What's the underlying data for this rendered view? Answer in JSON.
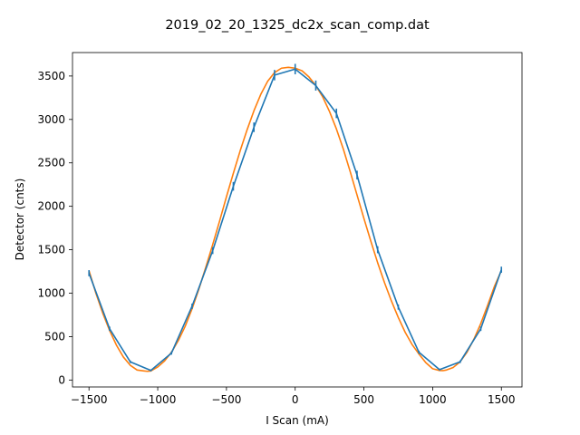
{
  "chart_data": {
    "type": "line",
    "title": "2019_02_20_1325_dc2x_scan_comp.dat",
    "xlabel": "I Scan (mA)",
    "ylabel": "Detector (cnts)",
    "xlim": [
      -1620,
      1650
    ],
    "ylim": [
      -80,
      3770
    ],
    "xticks": [
      -1500,
      -1000,
      -500,
      0,
      500,
      1000,
      1500
    ],
    "xtick_labels": [
      "−1500",
      "−1000",
      "−500",
      "0",
      "500",
      "1000",
      "1500"
    ],
    "yticks": [
      0,
      500,
      1000,
      1500,
      2000,
      2500,
      3000,
      3500
    ],
    "ytick_labels": [
      "0",
      "500",
      "1000",
      "1500",
      "2000",
      "2500",
      "3000",
      "3500"
    ],
    "grid": false,
    "series": [
      {
        "kind": "fit",
        "color": "#ff7f0e",
        "x": [
          -1500,
          -1450,
          -1400,
          -1350,
          -1300,
          -1250,
          -1200,
          -1150,
          -1100,
          -1075,
          -1050,
          -1000,
          -950,
          -900,
          -850,
          -800,
          -750,
          -700,
          -650,
          -600,
          -550,
          -500,
          -450,
          -400,
          -350,
          -300,
          -250,
          -200,
          -150,
          -100,
          -50,
          0,
          50,
          100,
          150,
          200,
          250,
          300,
          350,
          400,
          450,
          500,
          550,
          600,
          650,
          700,
          750,
          800,
          850,
          900,
          950,
          1000,
          1050,
          1075,
          1100,
          1150,
          1200,
          1250,
          1300,
          1350,
          1400,
          1450,
          1500
        ],
        "y": [
          1260,
          1000,
          770,
          570,
          400,
          265,
          170,
          115,
          105,
          100,
          105,
          150,
          220,
          320,
          455,
          620,
          820,
          1050,
          1300,
          1560,
          1830,
          2110,
          2380,
          2640,
          2880,
          3100,
          3290,
          3440,
          3540,
          3590,
          3600,
          3590,
          3560,
          3490,
          3390,
          3260,
          3090,
          2890,
          2660,
          2400,
          2130,
          1860,
          1600,
          1350,
          1120,
          910,
          720,
          550,
          410,
          300,
          200,
          130,
          110,
          108,
          115,
          145,
          210,
          320,
          470,
          650,
          860,
          1080,
          1260
        ]
      },
      {
        "kind": "data",
        "color": "#1f77b4",
        "x": [
          -1500,
          -1350,
          -1200,
          -1050,
          -900,
          -750,
          -600,
          -450,
          -300,
          -150,
          0,
          150,
          300,
          450,
          600,
          750,
          900,
          1050,
          1200,
          1350,
          1500
        ],
        "y": [
          1230,
          590,
          210,
          110,
          310,
          850,
          1490,
          2230,
          2910,
          3510,
          3580,
          3390,
          3070,
          2360,
          1500,
          840,
          320,
          120,
          210,
          590,
          1270
        ],
        "err": [
          35,
          25,
          15,
          10,
          18,
          30,
          40,
          50,
          55,
          60,
          60,
          58,
          55,
          50,
          40,
          30,
          18,
          10,
          15,
          25,
          35
        ]
      }
    ]
  }
}
